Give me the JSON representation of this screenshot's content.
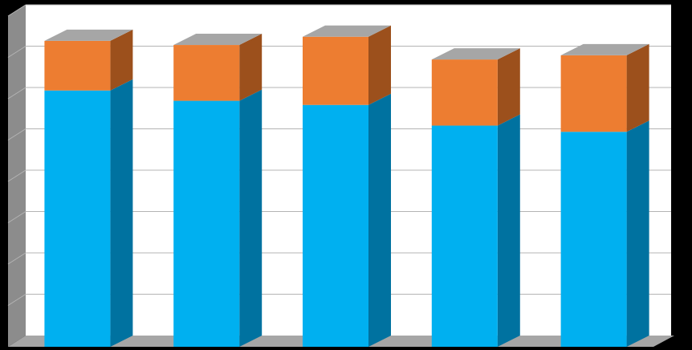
{
  "chart_data": {
    "type": "bar",
    "stacked": true,
    "three_d": true,
    "categories": [
      "",
      "",
      "",
      "",
      ""
    ],
    "series": [
      {
        "values": [
          6.2,
          5.95,
          5.85,
          5.35,
          5.2
        ]
      },
      {
        "values": [
          1.2,
          1.35,
          1.65,
          1.6,
          1.85
        ]
      }
    ],
    "ylim": [
      0,
      8
    ],
    "y_gridline_count": 8,
    "grid": true,
    "legend": "none",
    "colors": {
      "series": [
        "#00b0f0",
        "#ed7d31"
      ],
      "series_side": [
        "#0072a0",
        "#9c501c"
      ],
      "top_cap": "#a6a6a6",
      "plot_background": "#ffffff",
      "wall": "#8c8c8c",
      "floor": "#a6a6a6",
      "gridline": "#b4b4b4",
      "page_background": "#000000"
    }
  }
}
